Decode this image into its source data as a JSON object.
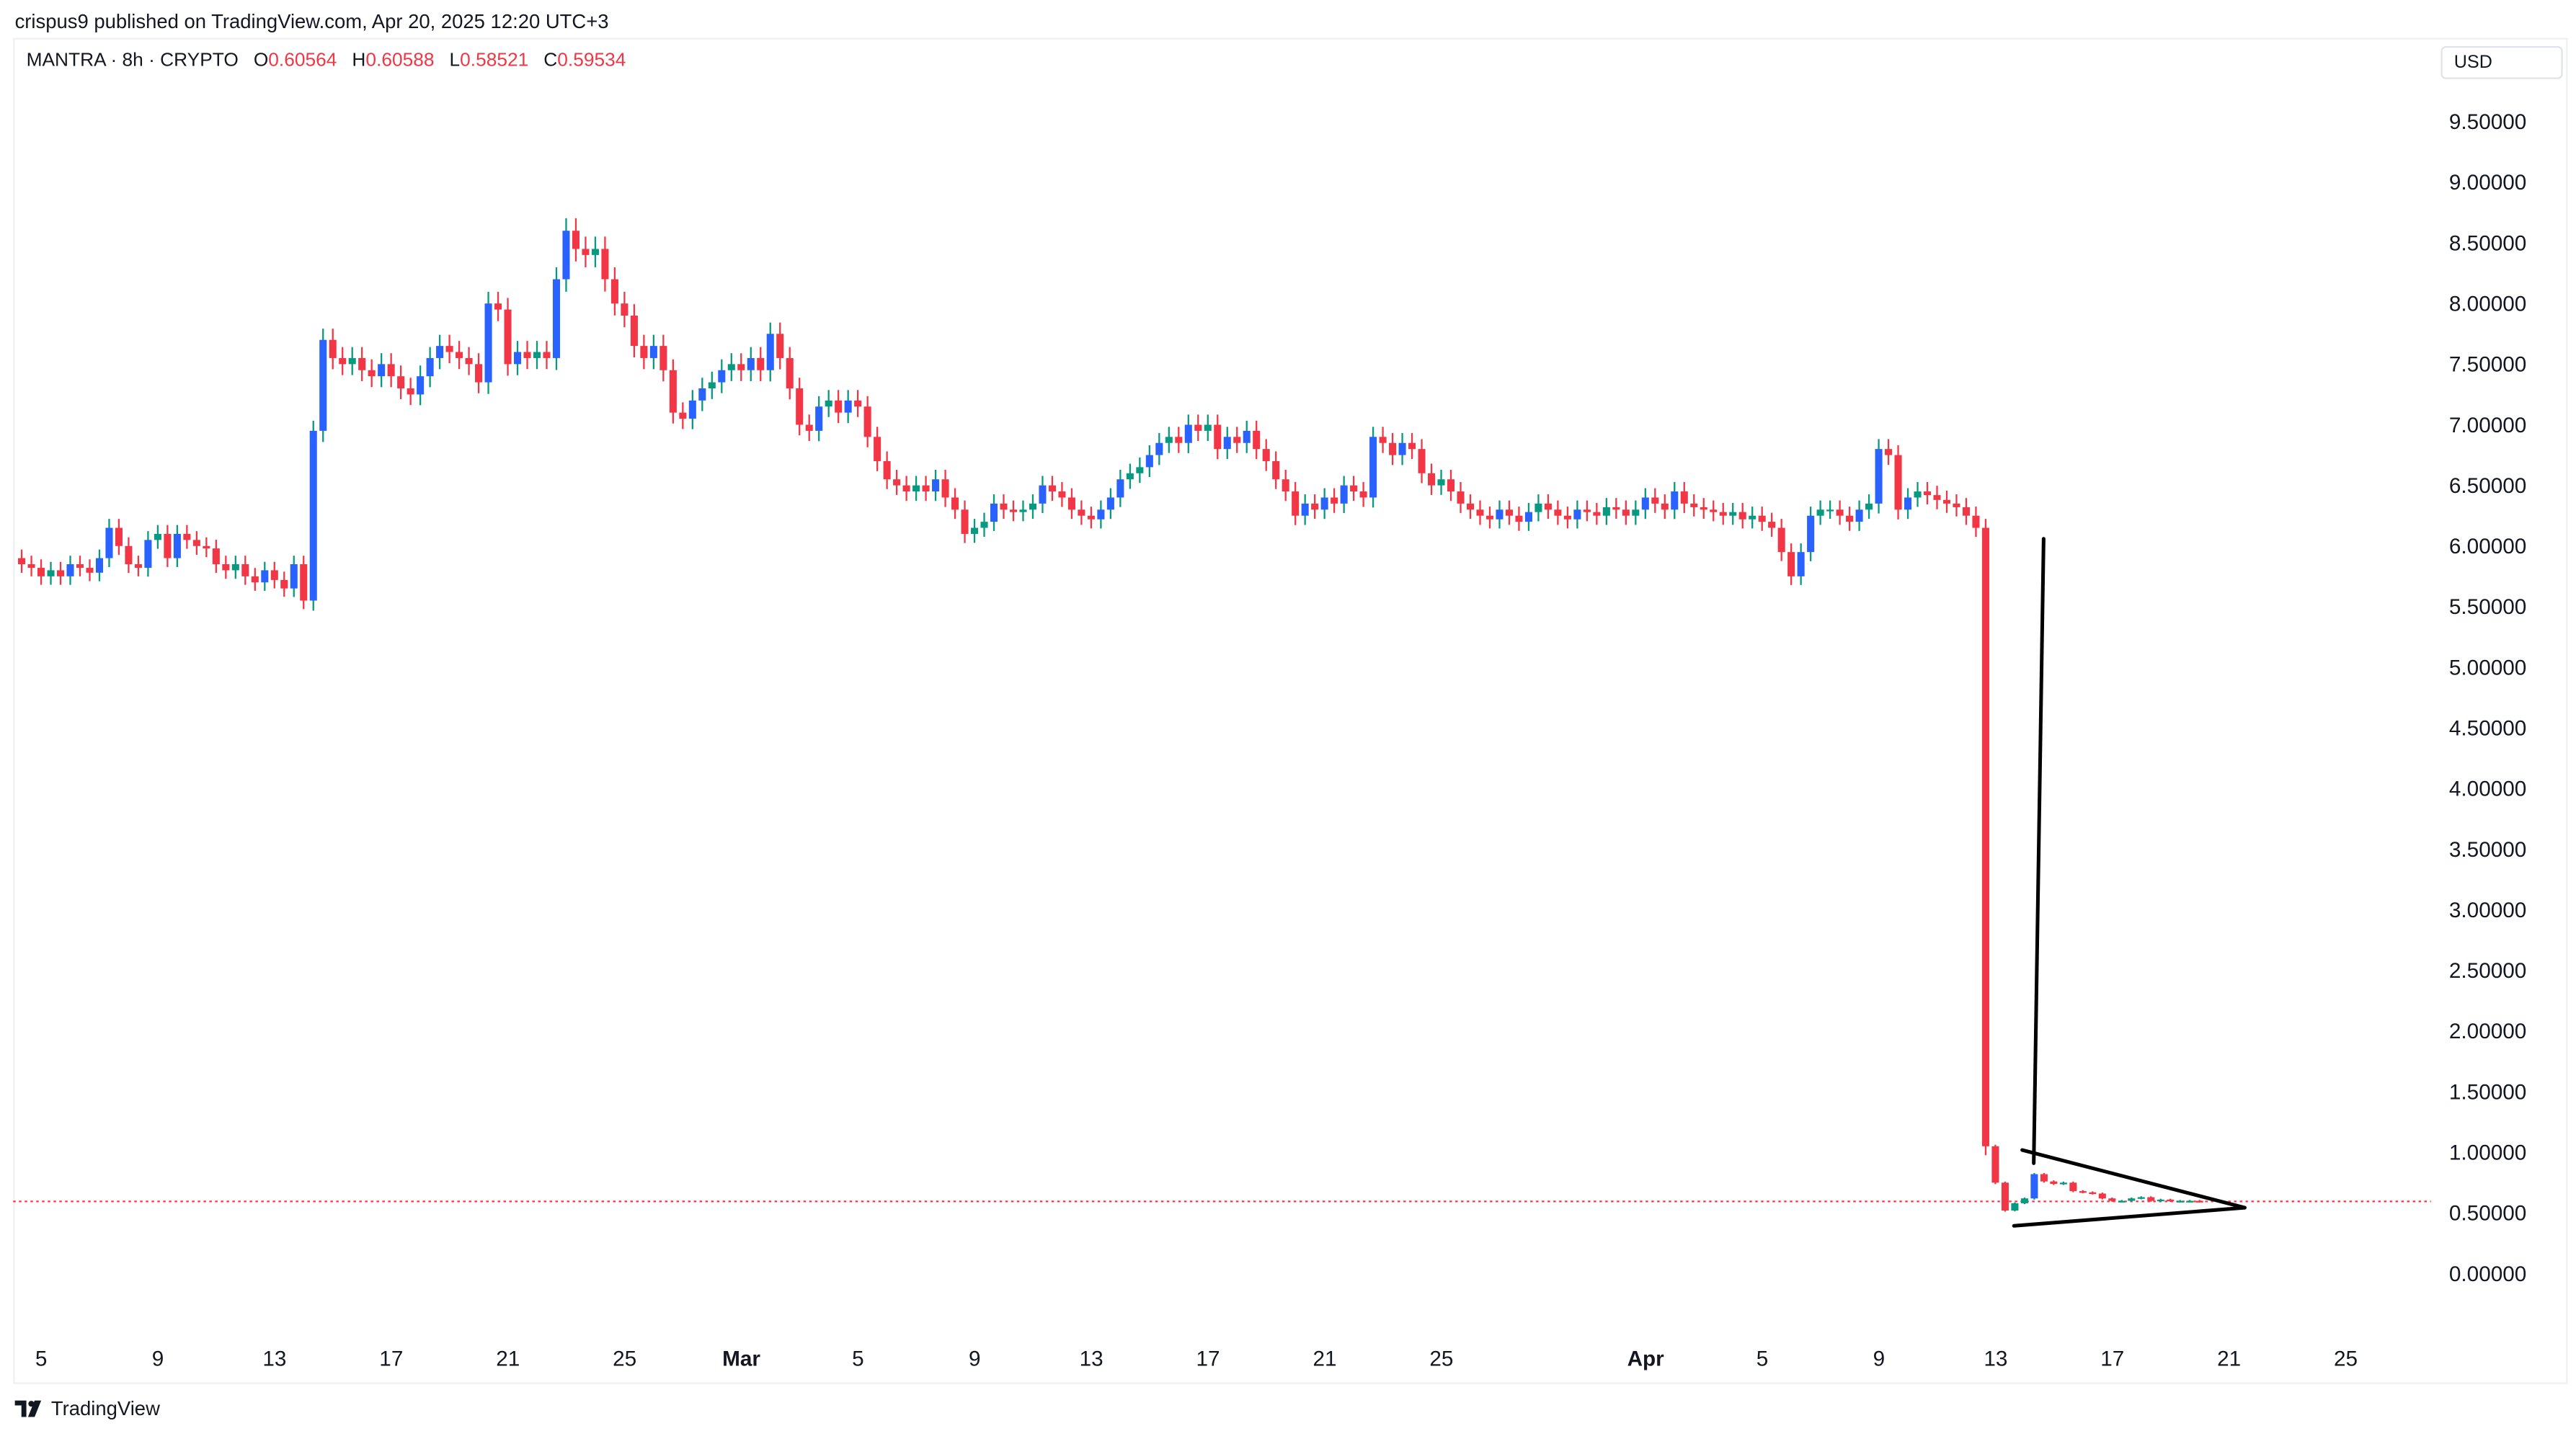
{
  "header": {
    "published": "crispus9 published on TradingView.com, Apr 20, 2025 12:20 UTC+3"
  },
  "legend": {
    "symbol": "MANTRA · 8h · CRYPTO",
    "o_label": "O",
    "o": "0.60564",
    "h_label": "H",
    "h": "0.60588",
    "l_label": "L",
    "l": "0.58521",
    "c_label": "C",
    "c": "0.59534"
  },
  "currency": "USD",
  "brand": "TradingView",
  "colors": {
    "up": "#2962ff",
    "up_wick": "#089981",
    "down": "#f23645",
    "last_price": "#f23645",
    "drawing": "#000000"
  },
  "chart_data": {
    "type": "candlestick",
    "title": "MANTRA · 8h · CRYPTO",
    "ylim": [
      0,
      9.5
    ],
    "y_ticks": [
      "0.00000",
      "0.50000",
      "1.00000",
      "1.50000",
      "2.00000",
      "2.50000",
      "3.00000",
      "3.50000",
      "4.00000",
      "4.50000",
      "5.00000",
      "5.50000",
      "6.00000",
      "6.50000",
      "7.00000",
      "7.50000",
      "8.00000",
      "8.50000",
      "9.00000",
      "9.50000"
    ],
    "x_ticks": [
      {
        "label": "5",
        "day": 0
      },
      {
        "label": "9",
        "day": 4
      },
      {
        "label": "13",
        "day": 8
      },
      {
        "label": "17",
        "day": 12
      },
      {
        "label": "21",
        "day": 16
      },
      {
        "label": "25",
        "day": 20
      },
      {
        "label": "Mar",
        "day": 24
      },
      {
        "label": "5",
        "day": 28
      },
      {
        "label": "9",
        "day": 32
      },
      {
        "label": "13",
        "day": 36
      },
      {
        "label": "17",
        "day": 40
      },
      {
        "label": "21",
        "day": 44
      },
      {
        "label": "25",
        "day": 48
      },
      {
        "label": "Apr",
        "day": 55
      },
      {
        "label": "5",
        "day": 59
      },
      {
        "label": "9",
        "day": 63
      },
      {
        "label": "13",
        "day": 67
      },
      {
        "label": "17",
        "day": 71
      },
      {
        "label": "21",
        "day": 75
      },
      {
        "label": "25",
        "day": 79
      }
    ],
    "first_candle_day": -0.67,
    "candle_interval_days": 0.3333,
    "open_first": 5.9,
    "closes": [
      5.85,
      5.82,
      5.75,
      5.8,
      5.75,
      5.85,
      5.82,
      5.78,
      5.9,
      6.15,
      6.0,
      5.85,
      5.82,
      6.05,
      6.1,
      5.9,
      6.1,
      6.05,
      6.0,
      5.98,
      5.85,
      5.8,
      5.85,
      5.75,
      5.7,
      5.8,
      5.72,
      5.65,
      5.85,
      5.55,
      6.95,
      7.7,
      7.55,
      7.5,
      7.55,
      7.45,
      7.4,
      7.5,
      7.4,
      7.3,
      7.25,
      7.4,
      7.55,
      7.65,
      7.6,
      7.55,
      7.5,
      7.35,
      8.0,
      7.95,
      7.5,
      7.6,
      7.55,
      7.6,
      7.55,
      8.2,
      8.6,
      8.45,
      8.4,
      8.45,
      8.2,
      8.0,
      7.9,
      7.65,
      7.55,
      7.65,
      7.45,
      7.1,
      7.05,
      7.2,
      7.3,
      7.35,
      7.45,
      7.5,
      7.45,
      7.55,
      7.45,
      7.75,
      7.55,
      7.3,
      7.0,
      6.95,
      7.15,
      7.2,
      7.1,
      7.2,
      7.15,
      6.9,
      6.7,
      6.55,
      6.5,
      6.45,
      6.5,
      6.45,
      6.55,
      6.4,
      6.3,
      6.1,
      6.15,
      6.2,
      6.35,
      6.3,
      6.28,
      6.3,
      6.35,
      6.5,
      6.45,
      6.4,
      6.3,
      6.25,
      6.22,
      6.3,
      6.4,
      6.55,
      6.6,
      6.65,
      6.75,
      6.85,
      6.9,
      6.85,
      7.0,
      6.95,
      7.0,
      6.8,
      6.9,
      6.85,
      6.95,
      6.8,
      6.7,
      6.55,
      6.45,
      6.25,
      6.35,
      6.3,
      6.4,
      6.35,
      6.5,
      6.45,
      6.4,
      6.9,
      6.85,
      6.75,
      6.85,
      6.8,
      6.6,
      6.5,
      6.55,
      6.45,
      6.35,
      6.3,
      6.25,
      6.22,
      6.3,
      6.25,
      6.2,
      6.28,
      6.35,
      6.3,
      6.25,
      6.22,
      6.3,
      6.28,
      6.25,
      6.32,
      6.3,
      6.25,
      6.3,
      6.4,
      6.35,
      6.3,
      6.45,
      6.35,
      6.32,
      6.3,
      6.28,
      6.25,
      6.28,
      6.22,
      6.25,
      6.2,
      6.15,
      5.95,
      5.75,
      5.95,
      6.25,
      6.3,
      6.3,
      6.25,
      6.2,
      6.3,
      6.35,
      6.8,
      6.75,
      6.3,
      6.4,
      6.45,
      6.42,
      6.38,
      6.35,
      6.32,
      6.25,
      6.15,
      1.05,
      0.75,
      0.52,
      0.58,
      0.62,
      0.82,
      0.76,
      0.74,
      0.75,
      0.68,
      0.67,
      0.66,
      0.62,
      0.6,
      0.6,
      0.62,
      0.63,
      0.6,
      0.61,
      0.6,
      0.6,
      0.6,
      0.595
    ],
    "last_price": 0.59534
  }
}
